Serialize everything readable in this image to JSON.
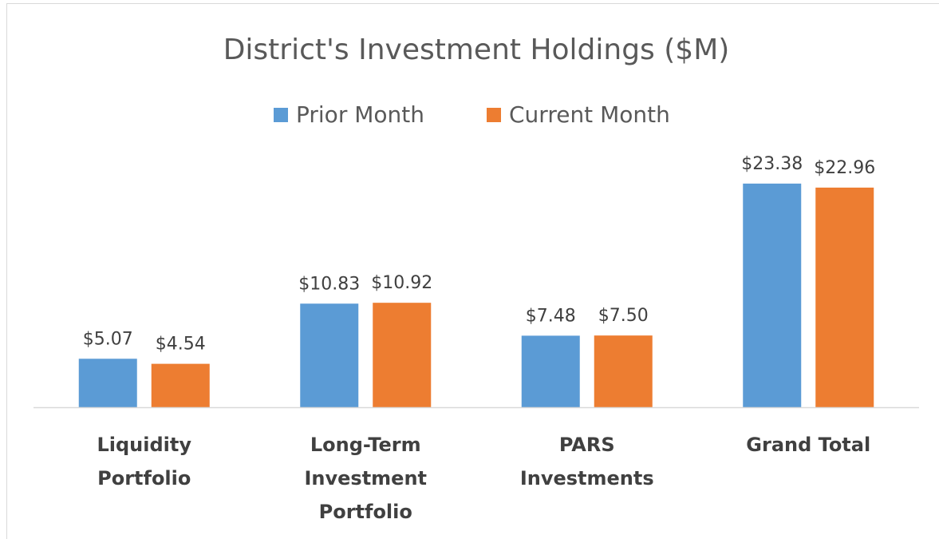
{
  "chart_data": {
    "type": "bar",
    "title": "District's Investment Holdings ($M)",
    "categories": [
      "Liquidity Portfolio",
      "Long-Term Investment Portfolio",
      "PARS Investments",
      "Grand Total"
    ],
    "series": [
      {
        "name": "Prior Month",
        "color": "#5b9bd5",
        "values": [
          5.07,
          10.83,
          7.48,
          23.38
        ],
        "value_labels": [
          "$5.07",
          "$10.83",
          "$7.48",
          "$23.38"
        ]
      },
      {
        "name": "Current Month",
        "color": "#ed7d31",
        "values": [
          4.54,
          10.92,
          7.5,
          22.96
        ],
        "value_labels": [
          "$4.54",
          "$10.92",
          "$7.50",
          "$22.96"
        ]
      }
    ],
    "legend": "top",
    "grid": false
  }
}
